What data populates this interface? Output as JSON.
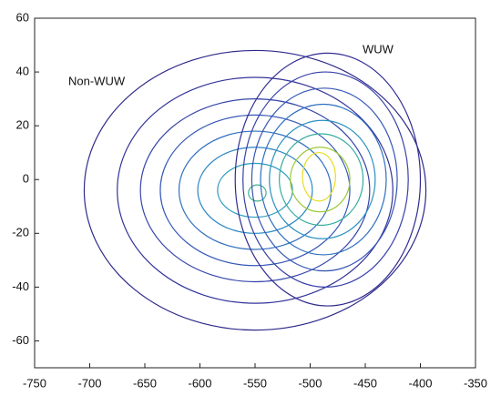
{
  "chart_data": {
    "type": "contour",
    "xlim": [
      -750,
      -350
    ],
    "xticks": [
      -750,
      -700,
      -650,
      -600,
      -550,
      -500,
      -450,
      -400,
      -350
    ],
    "ylim": [
      -70,
      60
    ],
    "yticks": [
      -60,
      -40,
      -20,
      0,
      20,
      40,
      60
    ],
    "series": [
      {
        "name": "Non-WUW",
        "cx": [
          -550,
          -550,
          -550,
          -550,
          -550,
          -550,
          -550,
          -548
        ],
        "cy": [
          -4,
          -4,
          -4,
          -4,
          -4,
          -4,
          -4,
          -5
        ],
        "rx": [
          155,
          125,
          104,
          86,
          69,
          52,
          34,
          8
        ],
        "ry": [
          52,
          42,
          34,
          28,
          22,
          16,
          10,
          3
        ],
        "colors": [
          "#2e2a8a",
          "#33339a",
          "#3646aa",
          "#3558b6",
          "#316fbf",
          "#2c86c4",
          "#2a9cc0",
          "#3fb28f"
        ]
      },
      {
        "name": "WUW",
        "cx": [
          -484,
          -486,
          -487,
          -488,
          -489,
          -490,
          -491,
          -492
        ],
        "cy": [
          0,
          0,
          0,
          0,
          0,
          0,
          0,
          1
        ],
        "rx": [
          84,
          75,
          66,
          57,
          48,
          38,
          27,
          15
        ],
        "ry": [
          47,
          40,
          34,
          28,
          22,
          17,
          12,
          9
        ],
        "colors": [
          "#302c90",
          "#3640a8",
          "#3556b5",
          "#2f6fbf",
          "#2a90c2",
          "#35ad9e",
          "#9cc83a",
          "#e8dc20"
        ]
      }
    ]
  }
}
